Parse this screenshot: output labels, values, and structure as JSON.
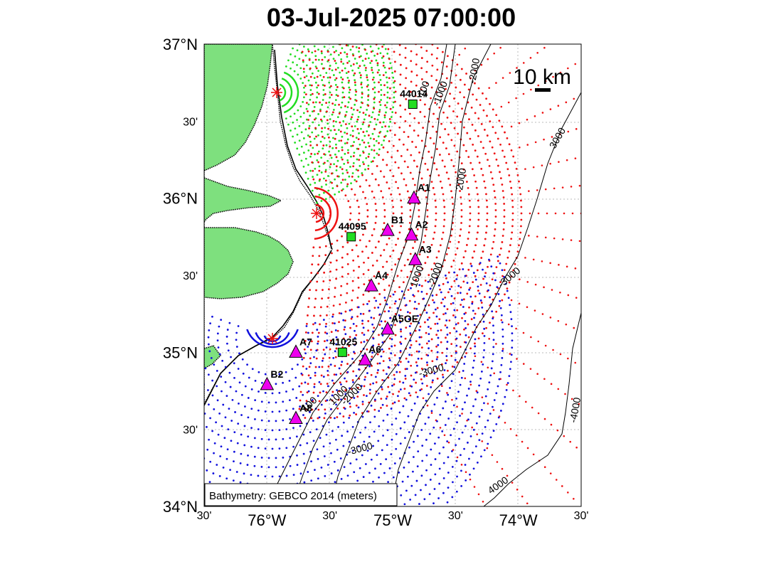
{
  "title": "03-Jul-2025 07:00:00",
  "map": {
    "lat_range": [
      34.0,
      37.0
    ],
    "lon_range": [
      -76.5,
      -73.5
    ],
    "y_ticks": [
      {
        "lat": 37.0,
        "label": "37°N",
        "major": true
      },
      {
        "lat": 36.5,
        "label": "30'",
        "major": false
      },
      {
        "lat": 36.0,
        "label": "36°N",
        "major": true
      },
      {
        "lat": 35.5,
        "label": "30'",
        "major": false
      },
      {
        "lat": 35.0,
        "label": "35°N",
        "major": true
      },
      {
        "lat": 34.5,
        "label": "30'",
        "major": false
      },
      {
        "lat": 34.0,
        "label": "34°N",
        "major": true
      }
    ],
    "x_ticks": [
      {
        "lon": -76.5,
        "label": "30'",
        "major": false
      },
      {
        "lon": -76.0,
        "label": "76°W",
        "major": true
      },
      {
        "lon": -75.5,
        "label": "30'",
        "major": false
      },
      {
        "lon": -75.0,
        "label": "75°W",
        "major": true
      },
      {
        "lon": -74.5,
        "label": "30'",
        "major": false
      },
      {
        "lon": -74.0,
        "label": "74°W",
        "major": true
      },
      {
        "lon": -73.5,
        "label": "30'",
        "major": false
      }
    ],
    "scale_label": "10 km",
    "bathymetry_note": "Bathymetry: GEBCO 2014 (meters)",
    "colors": {
      "land": "#7ee07e",
      "green": "#22dd22",
      "red": "#ee1111",
      "blue": "#1111dd",
      "magenta": "#ee00ee",
      "buoy": "#22dd22"
    },
    "contour_labels": [
      "100",
      "1000",
      "2000",
      "3000",
      "4000",
      "-100",
      "-1000",
      "-2000",
      "-3000",
      "-4000"
    ],
    "sites": [
      {
        "name": "A1",
        "lon": -74.83,
        "lat": 36.0
      },
      {
        "name": "B1",
        "lon": -75.04,
        "lat": 35.79
      },
      {
        "name": "A2",
        "lon": -74.85,
        "lat": 35.76
      },
      {
        "name": "A3",
        "lon": -74.82,
        "lat": 35.6
      },
      {
        "name": "A4",
        "lon": -75.17,
        "lat": 35.43
      },
      {
        "name": "A5OE",
        "lon": -75.04,
        "lat": 35.15
      },
      {
        "name": "A6",
        "lon": -75.22,
        "lat": 34.95
      },
      {
        "name": "A7",
        "lon": -75.77,
        "lat": 35.0
      },
      {
        "name": "B2",
        "lon": -76.0,
        "lat": 34.79
      },
      {
        "name": "A8",
        "lon": -75.77,
        "lat": 34.57
      }
    ],
    "buoys": [
      {
        "name": "44014",
        "lon": -74.84,
        "lat": 36.61
      },
      {
        "name": "44095",
        "lon": -75.33,
        "lat": 35.75
      },
      {
        "name": "41025",
        "lon": -75.4,
        "lat": 35.0
      }
    ],
    "radar_stations": [
      {
        "lon": -75.96,
        "lat": 36.72,
        "color": "green"
      },
      {
        "lon": -75.68,
        "lat": 35.84,
        "color": "red"
      },
      {
        "lon": -76.0,
        "lat": 35.1,
        "color": "blue"
      }
    ]
  }
}
